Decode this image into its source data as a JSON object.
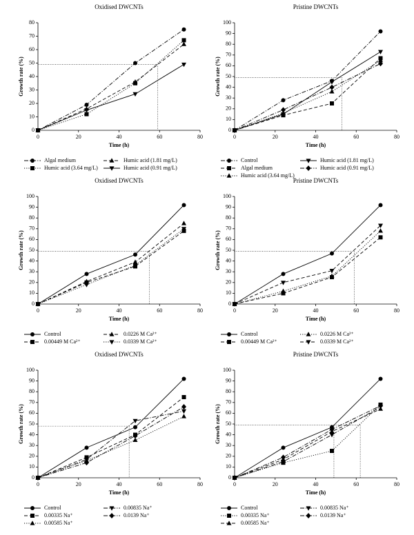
{
  "chart_data": [
    {
      "type": "line",
      "title": "Oxidised DWCNTs",
      "xlabel": "Time (h)",
      "ylabel": "Growth rate (%)",
      "x": [
        0,
        24,
        48,
        72
      ],
      "xlim": [
        0,
        80
      ],
      "xticks": [
        0,
        20,
        40,
        60,
        80
      ],
      "ylim": [
        0,
        80
      ],
      "yticks": [
        0,
        10,
        20,
        30,
        40,
        50,
        60,
        70,
        80
      ],
      "ref_y": 49,
      "ref_x": [
        59
      ],
      "series": [
        {
          "name": "Algal medium",
          "color": "#000",
          "marker": "circle",
          "dash": "dashdot",
          "values": [
            0,
            19,
            50,
            75
          ]
        },
        {
          "name": "Humic acid (1.81 mg/L)",
          "color": "#000",
          "marker": "triangle",
          "dash": "dashed",
          "values": [
            0,
            16,
            36,
            64
          ]
        },
        {
          "name": "Humic acid (3.64 mg/L)",
          "color": "#000",
          "marker": "square",
          "dash": "dotted",
          "values": [
            0,
            12,
            35,
            67
          ]
        },
        {
          "name": "Humic acid (0.91 mg/L)",
          "color": "#000",
          "marker": "triangle-down",
          "dash": "solid",
          "values": [
            0,
            15,
            27,
            49
          ]
        }
      ]
    },
    {
      "type": "line",
      "title": "Pristine DWCNTs",
      "xlabel": "Time (h)",
      "ylabel": "Growth rate (%)",
      "x": [
        0,
        24,
        48,
        72
      ],
      "xlim": [
        0,
        80
      ],
      "xticks": [
        0,
        20,
        40,
        60,
        80
      ],
      "ylim": [
        0,
        100
      ],
      "yticks": [
        0,
        10,
        20,
        30,
        40,
        50,
        60,
        70,
        80,
        90,
        100
      ],
      "ref_y": 49,
      "ref_x": [
        53
      ],
      "series": [
        {
          "name": "Control",
          "color": "#000",
          "marker": "circle",
          "dash": "dashdot",
          "values": [
            0,
            28,
            46,
            92
          ]
        },
        {
          "name": "Humic acid (1.81 mg/L)",
          "color": "#000",
          "marker": "triangle-down",
          "dash": "solid",
          "values": [
            0,
            15,
            45,
            73
          ]
        },
        {
          "name": "Algal medium",
          "color": "#000",
          "marker": "square",
          "dash": "dashed",
          "values": [
            0,
            14,
            25,
            67
          ]
        },
        {
          "name": "Humic acid (0.91 mg/L)",
          "color": "#000",
          "marker": "diamond",
          "dash": "dashdot",
          "values": [
            0,
            19,
            40,
            62
          ]
        },
        {
          "name": "Humic acid (3.64 mg/L)",
          "color": "#000",
          "marker": "triangle",
          "dash": "dotted",
          "values": [
            0,
            16,
            36,
            65
          ]
        }
      ]
    },
    {
      "type": "line",
      "title": "Oxidised DWCNTs",
      "xlabel": "Time (h)",
      "ylabel": "Growth rate (%)",
      "x": [
        0,
        24,
        48,
        72
      ],
      "xlim": [
        0,
        80
      ],
      "xticks": [
        0,
        20,
        40,
        60,
        80
      ],
      "ylim": [
        0,
        100
      ],
      "yticks": [
        0,
        10,
        20,
        30,
        40,
        50,
        60,
        70,
        80,
        90,
        100
      ],
      "ref_y": 49,
      "ref_x": [
        55
      ],
      "series": [
        {
          "name": "Control",
          "color": "#000",
          "marker": "circle",
          "dash": "solid",
          "values": [
            0,
            28,
            46,
            92
          ]
        },
        {
          "name": "0.0226 M Ca²⁺",
          "color": "#000",
          "marker": "triangle",
          "dash": "dashed",
          "values": [
            0,
            21,
            39,
            75
          ]
        },
        {
          "name": "0.00449 M Ca²⁺",
          "color": "#000",
          "marker": "square",
          "dash": "dashed",
          "values": [
            0,
            20,
            35,
            68
          ]
        },
        {
          "name": "0.0339 M Ca²⁺",
          "color": "#000",
          "marker": "triangle-down",
          "dash": "dotted",
          "values": [
            0,
            18,
            36,
            70
          ]
        }
      ]
    },
    {
      "type": "line",
      "title": "Pristine DWCNTs",
      "xlabel": "Time (h)",
      "ylabel": "Growth rate (%)",
      "x": [
        0,
        24,
        48,
        72
      ],
      "xlim": [
        0,
        80
      ],
      "xticks": [
        0,
        20,
        40,
        60,
        80
      ],
      "ylim": [
        0,
        100
      ],
      "yticks": [
        0,
        10,
        20,
        30,
        40,
        50,
        60,
        70,
        80,
        90,
        100
      ],
      "ref_y": 49,
      "ref_x": [
        59
      ],
      "series": [
        {
          "name": "Control",
          "color": "#000",
          "marker": "circle",
          "dash": "solid",
          "values": [
            0,
            28,
            47,
            92
          ]
        },
        {
          "name": "0.0226 M Ca²⁺",
          "color": "#000",
          "marker": "triangle",
          "dash": "dotted",
          "values": [
            0,
            12,
            26,
            68
          ]
        },
        {
          "name": "0.00449 M Ca²⁺",
          "color": "#000",
          "marker": "square",
          "dash": "dashed",
          "values": [
            0,
            10,
            25,
            62
          ]
        },
        {
          "name": "0.0339 M Ca²⁺",
          "color": "#000",
          "marker": "triangle-down",
          "dash": "dashed",
          "values": [
            0,
            20,
            31,
            73
          ]
        }
      ]
    },
    {
      "type": "line",
      "title": "Oxidised DWCNTs",
      "xlabel": "Time (h)",
      "ylabel": "Growth rate (%)",
      "x": [
        0,
        24,
        48,
        72
      ],
      "xlim": [
        0,
        80
      ],
      "xticks": [
        0,
        20,
        40,
        60,
        80
      ],
      "ylim": [
        0,
        100
      ],
      "yticks": [
        0,
        10,
        20,
        30,
        40,
        50,
        60,
        70,
        80,
        90,
        100
      ],
      "ref_y": 48,
      "ref_x": [
        45
      ],
      "series": [
        {
          "name": "Control",
          "color": "#000",
          "marker": "circle",
          "dash": "solid",
          "values": [
            0,
            28,
            47,
            92
          ]
        },
        {
          "name": "0.00835 Na⁺",
          "color": "#000",
          "marker": "triangle-down",
          "dash": "dashdot",
          "values": [
            0,
            17,
            53,
            62
          ]
        },
        {
          "name": "0.00335 Na⁺",
          "color": "#000",
          "marker": "square",
          "dash": "dashed",
          "values": [
            0,
            19,
            40,
            75
          ]
        },
        {
          "name": "0.0139 Na⁺",
          "color": "#000",
          "marker": "diamond",
          "dash": "dashdot",
          "values": [
            0,
            14,
            39,
            66
          ]
        },
        {
          "name": "0.00585 Na⁺",
          "color": "#000",
          "marker": "triangle",
          "dash": "dotted",
          "values": [
            0,
            16,
            35,
            57
          ]
        }
      ]
    },
    {
      "type": "line",
      "title": "Pristine DWCNTs",
      "xlabel": "Time (h)",
      "ylabel": "Growth rate (%)",
      "x": [
        0,
        24,
        48,
        72
      ],
      "xlim": [
        0,
        80
      ],
      "xticks": [
        0,
        20,
        40,
        60,
        80
      ],
      "ylim": [
        0,
        100
      ],
      "yticks": [
        0,
        10,
        20,
        30,
        40,
        50,
        60,
        70,
        80,
        90,
        100
      ],
      "ref_y": 49,
      "ref_x": [
        49,
        62
      ],
      "series": [
        {
          "name": "Control",
          "color": "#000",
          "marker": "circle",
          "dash": "solid",
          "values": [
            0,
            28,
            47,
            92
          ]
        },
        {
          "name": "0.00835 Na⁺",
          "color": "#000",
          "marker": "triangle-down",
          "dash": "dashdot",
          "values": [
            0,
            15,
            40,
            66
          ]
        },
        {
          "name": "0.00335 Na⁺",
          "color": "#000",
          "marker": "square",
          "dash": "dotted",
          "values": [
            0,
            14,
            25,
            68
          ]
        },
        {
          "name": "0.0139 Na⁺",
          "color": "#000",
          "marker": "diamond",
          "dash": "dashdot",
          "values": [
            0,
            19,
            45,
            67
          ]
        },
        {
          "name": "0.00585 Na⁺",
          "color": "#000",
          "marker": "triangle",
          "dash": "dashed",
          "values": [
            0,
            17,
            43,
            64
          ]
        }
      ]
    }
  ]
}
